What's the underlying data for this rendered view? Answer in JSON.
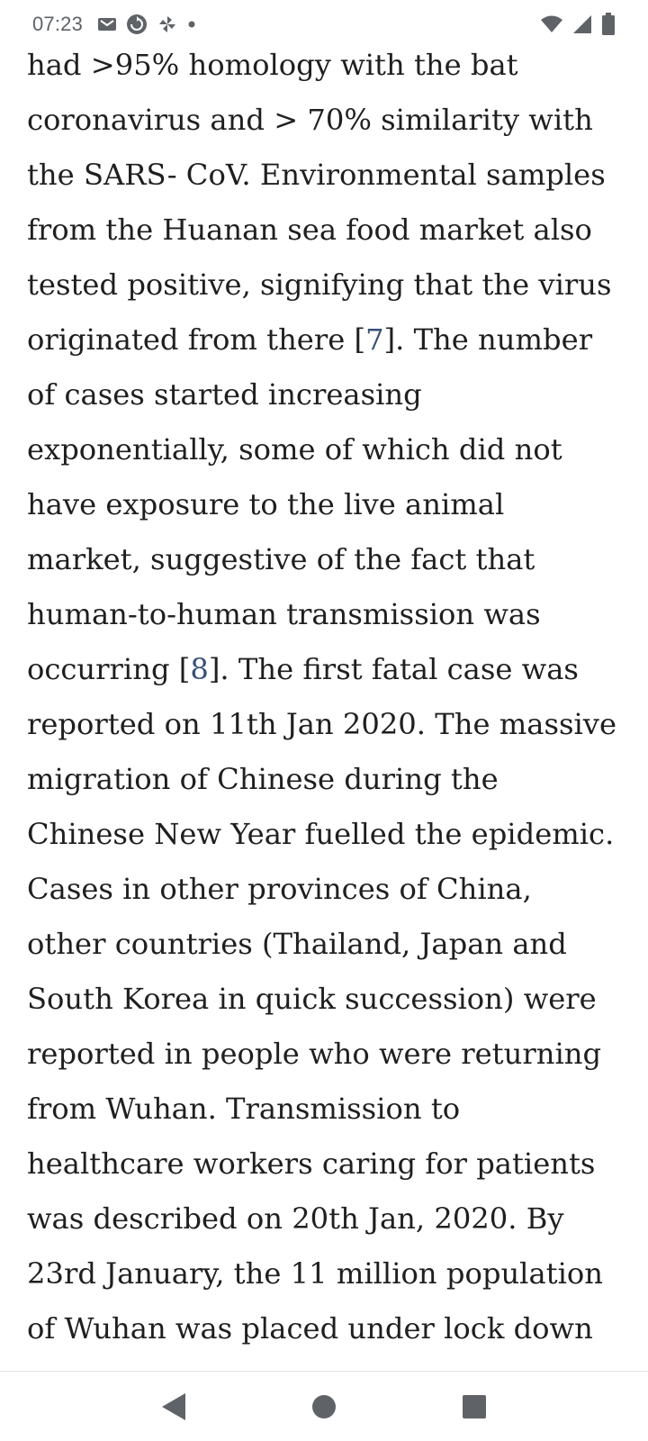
{
  "status_bar": {
    "time": "07:23",
    "icons_left": [
      "gmail-icon",
      "sync-icon",
      "pinwheel-icon",
      "dot-icon"
    ],
    "icons_right": [
      "wifi-icon",
      "signal-icon",
      "battery-icon"
    ],
    "icon_color": "#5f6368"
  },
  "article": {
    "text_color": "#1f1f1f",
    "link_color": "#36507a",
    "lines": [
      "had >95% homology with the bat",
      "coronavirus and > 70% similarity with",
      "the SARS- CoV. Environmental samples",
      "from the Huanan sea food market also",
      "tested positive, signifying that the virus",
      "originated from there [",
      "of cases started increasing",
      "exponentially, some of which did not",
      "have exposure to the live animal",
      "market, suggestive of the fact that",
      "human-to-human transmission was",
      "occurring [",
      "reported on 11th Jan 2020. The massive",
      "migration of Chinese during the",
      "Chinese New Year fuelled the epidemic.",
      "Cases in other provinces of China,",
      "other countries (Thailand, Japan and",
      "South Korea in quick succession) were",
      "reported in people who were returning",
      "from Wuhan. Transmission to",
      "healthcare workers caring for patients",
      "was described on 20th Jan, 2020. By",
      "23rd January, the 11 million population",
      "of Wuhan was placed under lock down"
    ],
    "line6_after": "]. The number",
    "line12_after": "]. The first fatal case was",
    "ref_7": "7",
    "ref_8": "8"
  },
  "nav_bar": {
    "back": "back-icon",
    "home": "home-icon",
    "recents": "recents-icon"
  }
}
